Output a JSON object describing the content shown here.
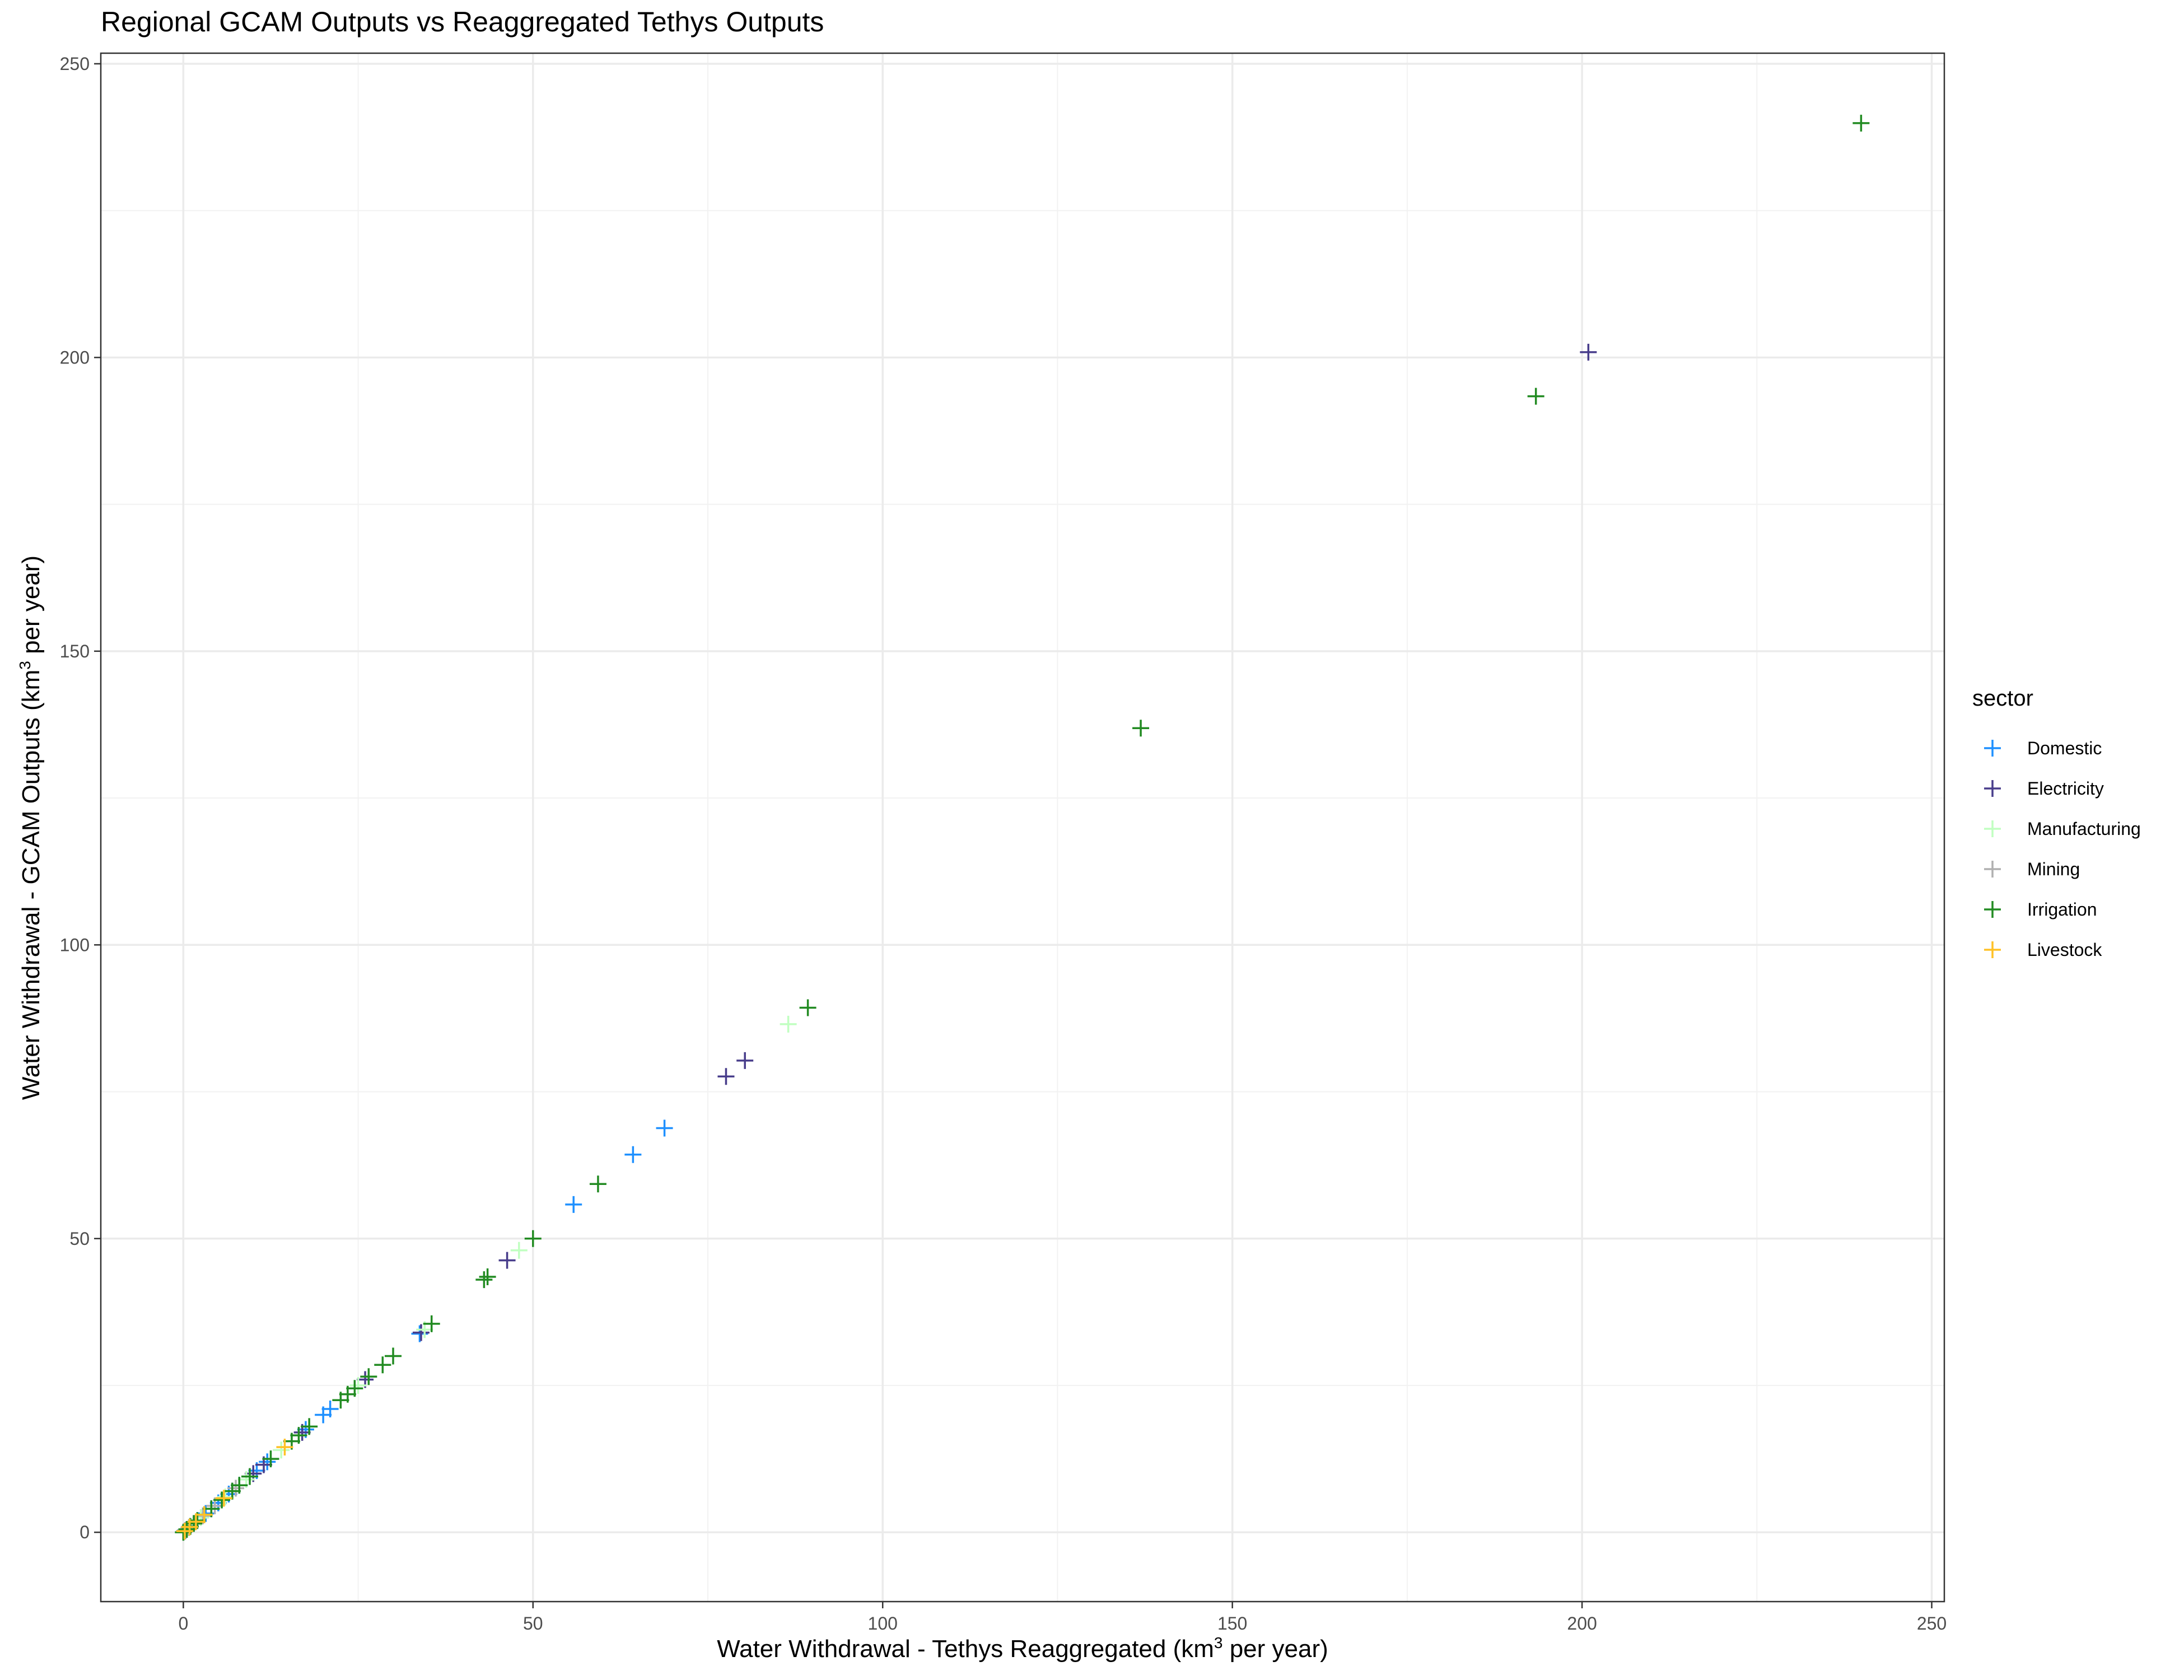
{
  "chart_data": {
    "type": "scatter",
    "title": "Regional GCAM Outputs vs Reaggregated Tethys Outputs",
    "xlabel_prefix": "Water Withdrawal - Tethys Reaggregated  (km",
    "xlabel_sup": "3",
    "xlabel_suffix": " per year)",
    "ylabel_prefix": "Water Withdrawal - GCAM Outputs  (km",
    "ylabel_sup": "3",
    "ylabel_suffix": " per year)",
    "xlim": [
      -11.8,
      251.8
    ],
    "ylim": [
      -11.8,
      251.8
    ],
    "x_ticks": [
      0,
      50,
      100,
      150,
      200,
      250
    ],
    "y_ticks": [
      0,
      50,
      100,
      150,
      200,
      250
    ],
    "grid": true,
    "marker": "plus",
    "legend_position": "right",
    "legend_title": "sector",
    "series": [
      {
        "name": "Domestic",
        "color": "#1e90ff",
        "x": [
          0.3,
          1.0,
          2.0,
          3.2,
          5.0,
          6.5,
          8.0,
          10.5,
          12.0,
          17.5,
          20.0,
          21.0,
          33.8,
          55.8,
          64.3,
          68.8
        ],
        "y": [
          0.3,
          1.0,
          2.0,
          3.2,
          5.0,
          6.5,
          8.0,
          10.5,
          12.0,
          17.5,
          20.0,
          21.0,
          33.8,
          55.8,
          64.3,
          68.8
        ]
      },
      {
        "name": "Electricity",
        "color": "#483d8b",
        "x": [
          0.2,
          1.5,
          4.0,
          7.0,
          10.0,
          11.5,
          17.0,
          26.0,
          34.0,
          46.3,
          77.6,
          80.3,
          200.9
        ],
        "y": [
          0.2,
          1.5,
          4.0,
          7.0,
          10.0,
          11.5,
          17.0,
          26.0,
          34.0,
          46.3,
          77.6,
          80.3,
          200.9
        ]
      },
      {
        "name": "Manufacturing",
        "color": "#c1ffc1",
        "x": [
          0.5,
          2.5,
          6.0,
          9.0,
          14.0,
          25.0,
          28.5,
          34.5,
          48.0,
          86.5
        ],
        "y": [
          0.5,
          2.5,
          6.0,
          9.0,
          14.0,
          25.0,
          28.5,
          34.5,
          48.0,
          86.5
        ]
      },
      {
        "name": "Mining",
        "color": "#b0b0b0",
        "x": [
          0.1,
          0.4,
          0.8,
          1.5,
          2.8,
          4.5,
          7.5
        ],
        "y": [
          0.1,
          0.4,
          0.8,
          1.5,
          2.8,
          4.5,
          7.5
        ]
      },
      {
        "name": "Irrigation",
        "color": "#228b22",
        "x": [
          0.0,
          0.5,
          1.0,
          1.5,
          2.0,
          3.0,
          4.0,
          5.5,
          7.0,
          8.0,
          9.5,
          12.5,
          15.5,
          16.5,
          18.0,
          22.5,
          23.5,
          24.5,
          26.5,
          28.5,
          30.0,
          35.5,
          43.0,
          43.5,
          50.0,
          59.3,
          89.3,
          136.9,
          193.4,
          239.9
        ],
        "y": [
          0.0,
          0.5,
          1.0,
          1.5,
          2.0,
          3.0,
          4.0,
          5.5,
          7.0,
          8.0,
          9.5,
          12.5,
          15.5,
          16.5,
          18.0,
          22.5,
          23.5,
          24.5,
          26.5,
          28.5,
          30.0,
          35.5,
          43.0,
          43.5,
          50.0,
          59.3,
          89.3,
          136.9,
          193.4,
          239.9
        ]
      },
      {
        "name": "Livestock",
        "color": "#ffc125",
        "x": [
          0.2,
          0.9,
          1.8,
          3.0,
          5.8,
          14.5
        ],
        "y": [
          0.2,
          0.9,
          1.8,
          3.0,
          5.8,
          14.5
        ]
      }
    ]
  }
}
